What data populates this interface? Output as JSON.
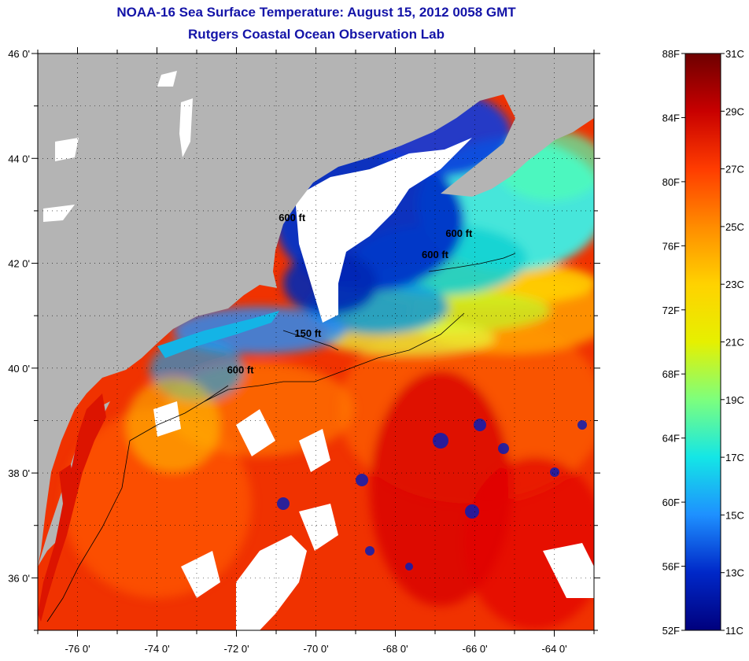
{
  "title": "NOAA-16 Sea Surface Temperature:  August 15, 2012 0058 GMT",
  "subtitle": "Rutgers Coastal Ocean Observation Lab",
  "map": {
    "lon_range": [
      -77,
      -63
    ],
    "lat_range": [
      35,
      46
    ],
    "lon_ticks": [
      "-76 0'",
      "-74 0'",
      "-72 0'",
      "-70 0'",
      "-68 0'",
      "-66 0'",
      "-64 0'"
    ],
    "lat_ticks": [
      "46 0'",
      "44 0'",
      "42 0'",
      "40 0'",
      "38 0'",
      "36 0'"
    ],
    "grid": "dotted",
    "colors": {
      "land": "#b4b4b4",
      "cloud": "#ffffff",
      "frame": "#000000"
    },
    "contours": [
      {
        "label": "600 ft",
        "lon": -70.6,
        "lat": 42.8
      },
      {
        "label": "600 ft",
        "lon": -66.4,
        "lat": 42.5
      },
      {
        "label": "600 ft",
        "lon": -67.0,
        "lat": 42.1
      },
      {
        "label": "150 ft",
        "lon": -70.2,
        "lat": 40.6
      },
      {
        "label": "600 ft",
        "lon": -71.9,
        "lat": 39.9
      }
    ]
  },
  "colorbar": {
    "fahrenheit": [
      "88F",
      "84F",
      "80F",
      "76F",
      "72F",
      "68F",
      "64F",
      "60F",
      "56F",
      "52F"
    ],
    "celsius": [
      "31C",
      "29C",
      "27C",
      "25C",
      "23C",
      "21C",
      "19C",
      "17C",
      "15C",
      "13C",
      "11C"
    ],
    "colors": [
      "#6e0000",
      "#c80000",
      "#ff3c00",
      "#ff8c00",
      "#ffd200",
      "#e6f000",
      "#7dff7d",
      "#14e6e6",
      "#1e90ff",
      "#0028c8",
      "#00007d"
    ]
  }
}
